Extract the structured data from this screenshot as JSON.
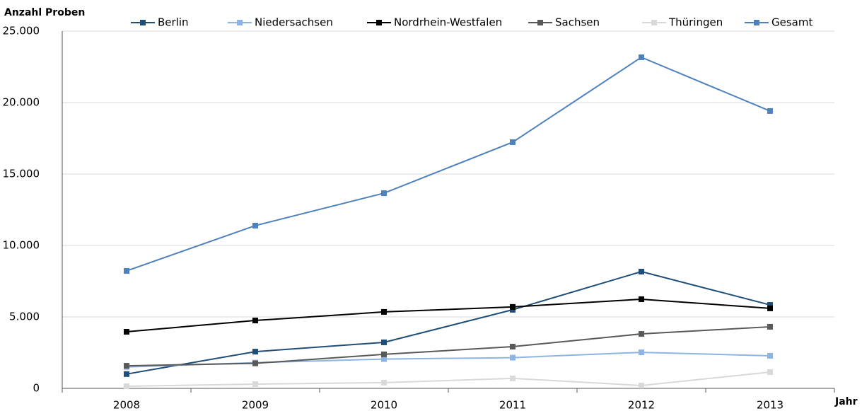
{
  "chart_data": {
    "type": "line",
    "y_label": "Anzahl Proben",
    "x_label": "Jahr",
    "categories": [
      "2008",
      "2009",
      "2010",
      "2011",
      "2012",
      "2013"
    ],
    "series": [
      {
        "name": "Berlin",
        "color": "#1f4e79",
        "values": [
          1000,
          2570,
          3220,
          5500,
          8170,
          5840
        ]
      },
      {
        "name": "Niedersachsen",
        "color": "#8eb4e3",
        "values": [
          1500,
          1800,
          2050,
          2150,
          2520,
          2280
        ]
      },
      {
        "name": "Nordrhein-Westfalen",
        "color": "#000000",
        "values": [
          3960,
          4750,
          5350,
          5700,
          6240,
          5600
        ]
      },
      {
        "name": "Sachsen",
        "color": "#595959",
        "values": [
          1580,
          1750,
          2380,
          2920,
          3810,
          4310
        ]
      },
      {
        "name": "Thüringen",
        "color": "#d9d9d9",
        "values": [
          150,
          300,
          400,
          700,
          200,
          1140
        ]
      },
      {
        "name": "Gesamt",
        "color": "#4f81bd",
        "values": [
          8220,
          11390,
          13660,
          17230,
          23170,
          19410
        ]
      }
    ],
    "ylim": [
      0,
      25000
    ],
    "yticks": [
      0,
      {
        "value": 5000,
        "label": "5.000"
      },
      {
        "value": 10000,
        "label": "10.000"
      },
      {
        "value": 15000,
        "label": "15.000"
      },
      {
        "value": 20000,
        "label": "20.000"
      },
      {
        "value": 25000,
        "label": "25.000"
      }
    ],
    "grid": true,
    "legend": "top"
  }
}
